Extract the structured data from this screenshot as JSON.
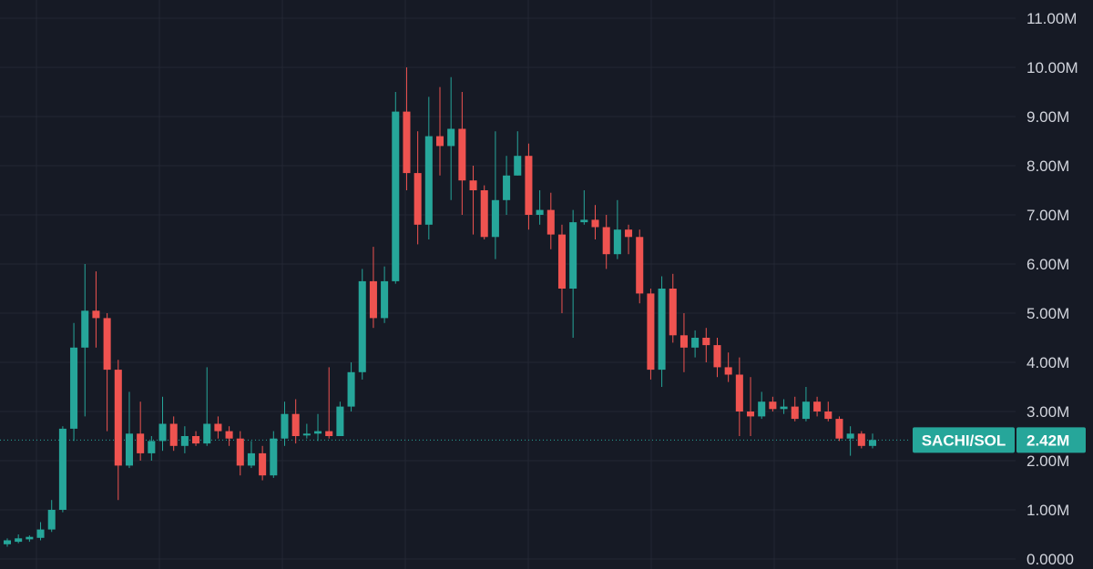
{
  "chart_data": {
    "type": "candlestick",
    "symbol": "SACHI/SOL",
    "last_price_label": "2.42M",
    "last_price": 2.42,
    "y_unit": "M",
    "ylim": [
      0,
      11.3
    ],
    "y_ticks": [
      {
        "value": 11,
        "label": "11.00M"
      },
      {
        "value": 10,
        "label": "10.00M"
      },
      {
        "value": 9,
        "label": "9.00M"
      },
      {
        "value": 8,
        "label": "8.00M"
      },
      {
        "value": 7,
        "label": "7.00M"
      },
      {
        "value": 6,
        "label": "6.00M"
      },
      {
        "value": 5,
        "label": "5.00M"
      },
      {
        "value": 4,
        "label": "4.00M"
      },
      {
        "value": 3,
        "label": "3.00M"
      },
      {
        "value": 2,
        "label": "2.00M"
      },
      {
        "value": 1,
        "label": "1.00M"
      },
      {
        "value": 0,
        "label": "0.0000"
      }
    ],
    "colors": {
      "up": "#26a69a",
      "down": "#ef5350",
      "background": "#161a25",
      "grid": "#232733",
      "axis_text": "#d1d4dc",
      "badge": "#26a69a"
    },
    "candles": [
      [
        0.3,
        0.38,
        0.25,
        0.42
      ],
      [
        0.35,
        0.42,
        0.32,
        0.5
      ],
      [
        0.4,
        0.45,
        0.35,
        0.48
      ],
      [
        0.43,
        0.6,
        0.38,
        0.75
      ],
      [
        0.6,
        1.0,
        0.55,
        1.2
      ],
      [
        1.0,
        2.65,
        0.95,
        2.7
      ],
      [
        2.65,
        4.3,
        2.4,
        4.8
      ],
      [
        4.3,
        5.05,
        2.9,
        6.0
      ],
      [
        5.05,
        4.9,
        4.3,
        5.85
      ],
      [
        4.9,
        3.85,
        2.6,
        5.0
      ],
      [
        3.85,
        1.9,
        1.2,
        4.05
      ],
      [
        1.9,
        2.55,
        1.85,
        3.4
      ],
      [
        2.55,
        2.15,
        2.0,
        3.2
      ],
      [
        2.15,
        2.4,
        2.0,
        2.5
      ],
      [
        2.4,
        2.75,
        2.2,
        3.3
      ],
      [
        2.75,
        2.3,
        2.2,
        2.9
      ],
      [
        2.3,
        2.5,
        2.15,
        2.7
      ],
      [
        2.5,
        2.35,
        2.3,
        2.6
      ],
      [
        2.35,
        2.75,
        2.3,
        3.9
      ],
      [
        2.75,
        2.6,
        2.45,
        2.9
      ],
      [
        2.6,
        2.45,
        2.3,
        2.7
      ],
      [
        2.45,
        1.9,
        1.7,
        2.6
      ],
      [
        1.9,
        2.15,
        1.85,
        2.4
      ],
      [
        2.15,
        1.7,
        1.6,
        2.3
      ],
      [
        1.7,
        2.45,
        1.65,
        2.6
      ],
      [
        2.45,
        2.95,
        2.3,
        3.2
      ],
      [
        2.95,
        2.5,
        2.35,
        3.25
      ],
      [
        2.55,
        2.55,
        2.45,
        2.75
      ],
      [
        2.55,
        2.6,
        2.4,
        2.95
      ],
      [
        2.6,
        2.5,
        2.45,
        3.9
      ],
      [
        2.5,
        3.1,
        2.5,
        3.2
      ],
      [
        3.1,
        3.8,
        3.0,
        4.0
      ],
      [
        3.8,
        5.65,
        3.65,
        5.9
      ],
      [
        5.65,
        4.9,
        4.7,
        6.35
      ],
      [
        4.9,
        5.65,
        4.8,
        5.95
      ],
      [
        5.65,
        9.1,
        5.6,
        9.5
      ],
      [
        9.1,
        7.85,
        7.5,
        10.0
      ],
      [
        7.85,
        6.8,
        6.4,
        8.7
      ],
      [
        6.8,
        8.6,
        6.5,
        9.4
      ],
      [
        8.6,
        8.4,
        7.8,
        9.6
      ],
      [
        8.4,
        8.75,
        7.3,
        9.8
      ],
      [
        8.75,
        7.7,
        7.0,
        9.5
      ],
      [
        7.7,
        7.5,
        6.6,
        8.0
      ],
      [
        7.5,
        6.55,
        6.5,
        7.6
      ],
      [
        6.55,
        7.3,
        6.1,
        8.7
      ],
      [
        7.3,
        7.8,
        7.0,
        8.2
      ],
      [
        7.8,
        8.2,
        7.8,
        8.7
      ],
      [
        8.2,
        7.0,
        6.7,
        8.45
      ],
      [
        7.0,
        7.1,
        6.8,
        7.5
      ],
      [
        7.1,
        6.6,
        6.3,
        7.45
      ],
      [
        6.6,
        5.5,
        5.0,
        6.8
      ],
      [
        5.5,
        6.85,
        4.5,
        7.1
      ],
      [
        6.85,
        6.9,
        6.8,
        7.5
      ],
      [
        6.9,
        6.75,
        6.5,
        7.2
      ],
      [
        6.75,
        6.2,
        5.9,
        7.0
      ],
      [
        6.2,
        6.7,
        6.1,
        7.3
      ],
      [
        6.7,
        6.55,
        6.2,
        6.8
      ],
      [
        6.55,
        5.4,
        5.2,
        6.7
      ],
      [
        5.4,
        3.85,
        3.65,
        5.5
      ],
      [
        3.85,
        5.5,
        3.5,
        5.75
      ],
      [
        5.5,
        4.55,
        4.4,
        5.8
      ],
      [
        4.55,
        4.3,
        3.8,
        5.0
      ],
      [
        4.3,
        4.5,
        4.1,
        4.65
      ],
      [
        4.5,
        4.35,
        4.0,
        4.7
      ],
      [
        4.35,
        3.9,
        3.7,
        4.5
      ],
      [
        3.9,
        3.75,
        3.6,
        4.2
      ],
      [
        3.75,
        3.0,
        2.5,
        4.1
      ],
      [
        3.0,
        2.9,
        2.5,
        3.7
      ],
      [
        2.9,
        3.2,
        2.85,
        3.4
      ],
      [
        3.2,
        3.05,
        3.0,
        3.3
      ],
      [
        3.05,
        3.1,
        2.95,
        3.25
      ],
      [
        3.1,
        2.85,
        2.8,
        3.3
      ],
      [
        2.85,
        3.2,
        2.8,
        3.5
      ],
      [
        3.2,
        3.0,
        2.9,
        3.3
      ],
      [
        3.0,
        2.85,
        2.8,
        3.2
      ],
      [
        2.85,
        2.45,
        2.4,
        2.9
      ],
      [
        2.45,
        2.55,
        2.1,
        2.7
      ],
      [
        2.55,
        2.3,
        2.25,
        2.6
      ],
      [
        2.3,
        2.42,
        2.25,
        2.55
      ]
    ]
  }
}
